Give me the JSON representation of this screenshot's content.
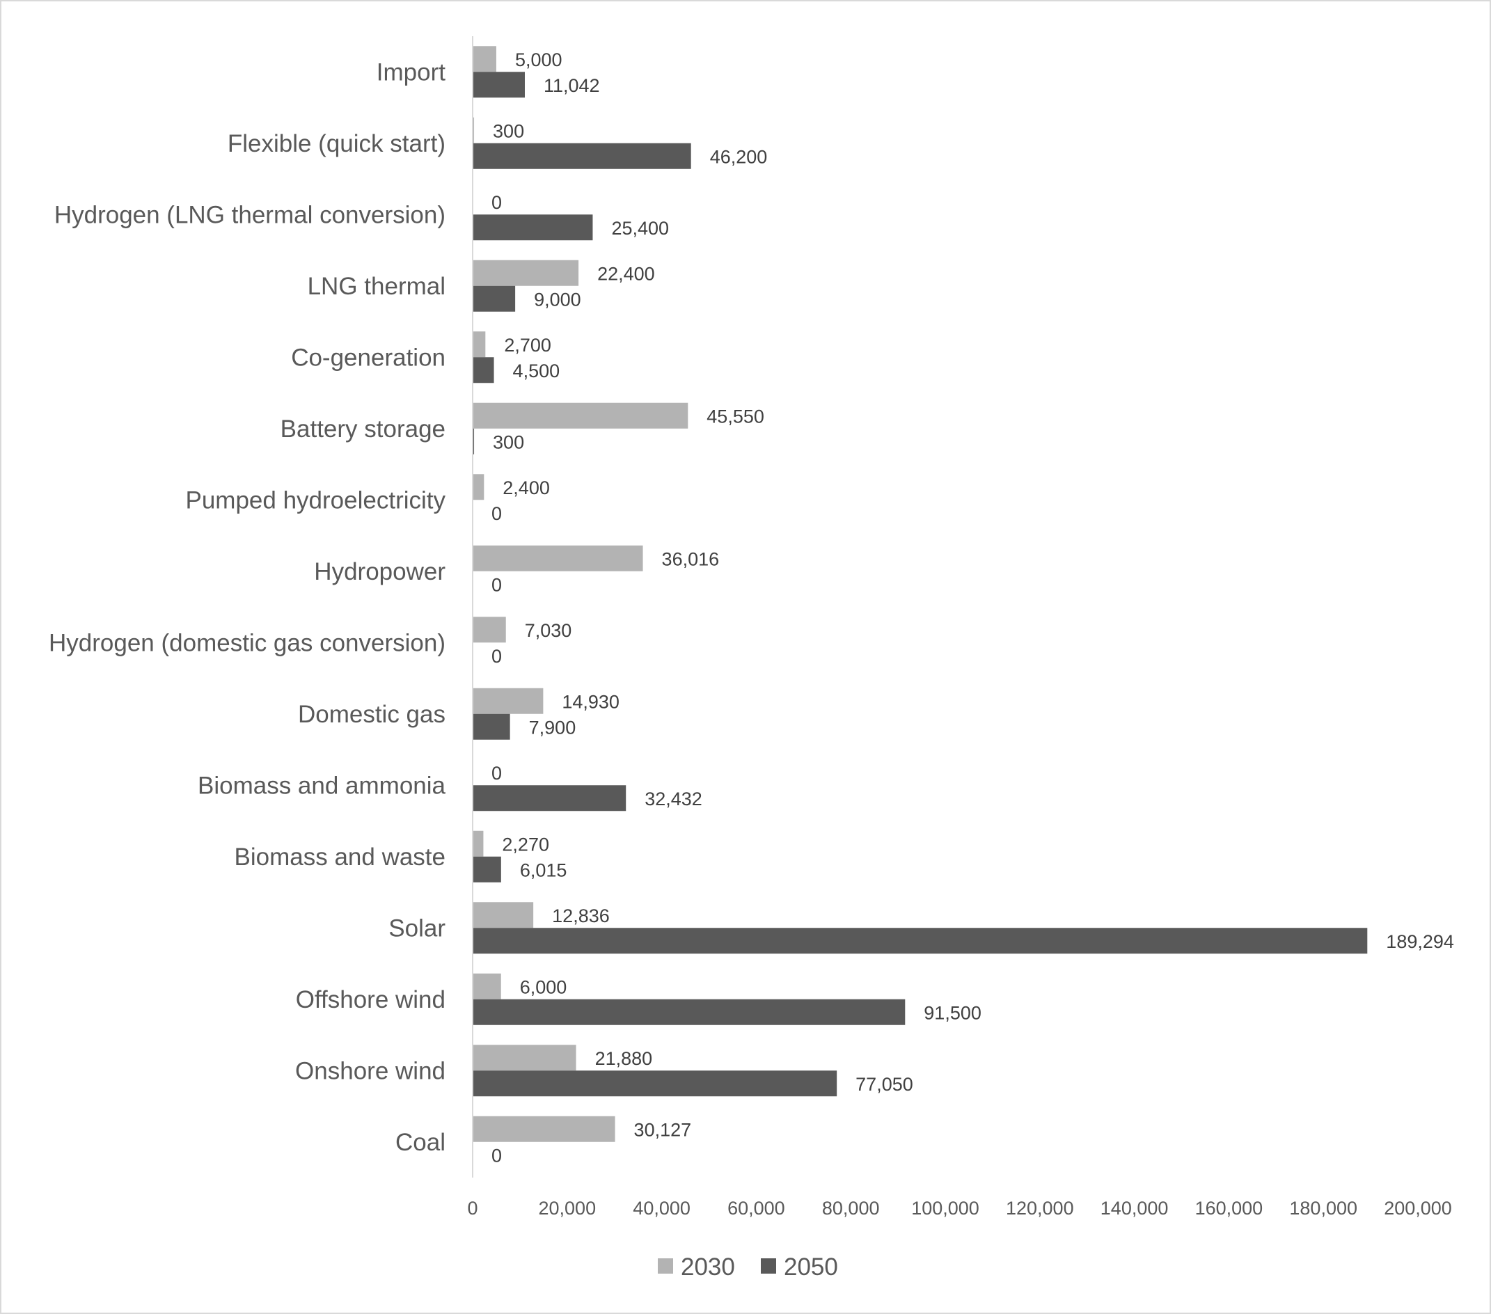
{
  "chart_data": {
    "type": "bar",
    "orientation": "horizontal",
    "title": "",
    "xlabel": "",
    "ylabel": "",
    "xlim": [
      0,
      200000
    ],
    "x_ticks": [
      "0",
      "20,000",
      "40,000",
      "60,000",
      "80,000",
      "100,000",
      "120,000",
      "140,000",
      "160,000",
      "180,000",
      "200,000"
    ],
    "grid": false,
    "legend_position": "bottom",
    "categories": [
      "Import",
      "Flexible (quick start)",
      "Hydrogen (LNG thermal conversion)",
      "LNG thermal",
      "Co-generation",
      "Battery storage",
      "Pumped hydroelectricity",
      "Hydropower",
      "Hydrogen (domestic gas conversion)",
      "Domestic gas",
      "Biomass and ammonia",
      "Biomass and waste",
      "Solar",
      "Offshore wind",
      "Onshore wind",
      "Coal"
    ],
    "series": [
      {
        "name": "2030",
        "color": "#b3b3b3",
        "values": [
          5000,
          300,
          0,
          22400,
          2700,
          45550,
          2400,
          36016,
          7030,
          14930,
          0,
          2270,
          12836,
          6000,
          21880,
          30127
        ],
        "labels": [
          "5,000",
          "300",
          "0",
          "22,400",
          "2,700",
          "45,550",
          "2,400",
          "36,016",
          "7,030",
          "14,930",
          "0",
          "2,270",
          "12,836",
          "6,000",
          "21,880",
          "30,127"
        ]
      },
      {
        "name": "2050",
        "color": "#595959",
        "values": [
          11042,
          46200,
          25400,
          9000,
          4500,
          300,
          0,
          0,
          0,
          7900,
          32432,
          6015,
          189294,
          91500,
          77050,
          0
        ],
        "labels": [
          "11,042",
          "46,200",
          "25,400",
          "9,000",
          "4,500",
          "300",
          "0",
          "0",
          "0",
          "7,900",
          "32,432",
          "6,015",
          "189,294",
          "91,500",
          "77,050",
          "0"
        ]
      }
    ]
  }
}
